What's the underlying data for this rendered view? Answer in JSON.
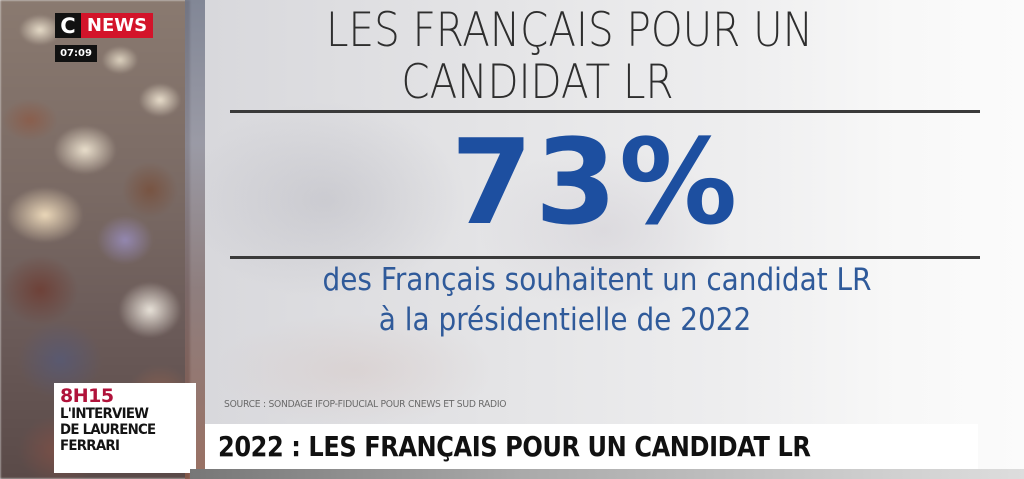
{
  "channel": {
    "logo_c": "C",
    "logo_news": "NEWS",
    "clock": "07:09",
    "brand_colors": {
      "red": "#d3142a",
      "black": "#111111"
    }
  },
  "infographic": {
    "title_line1": "LES FRANÇAIS POUR UN",
    "title_line2": "CANDIDAT LR",
    "percentage": "73%",
    "subtitle_line1": "des Français souhaitent un candidat LR",
    "subtitle_line2": "à la présidentielle de 2022",
    "source": "SOURCE : SONDAGE IFOP-FIDUCIAL POUR CNEWS ET SUD RADIO",
    "accent_color": "#1d4fa0"
  },
  "program": {
    "time": "8H15",
    "line1": "L'INTERVIEW",
    "line2": "DE LAURENCE",
    "line3": "FERRARI",
    "time_color": "#b0123a"
  },
  "headline": {
    "text": "2022 : LES FRANÇAIS POUR UN CANDIDAT LR"
  }
}
